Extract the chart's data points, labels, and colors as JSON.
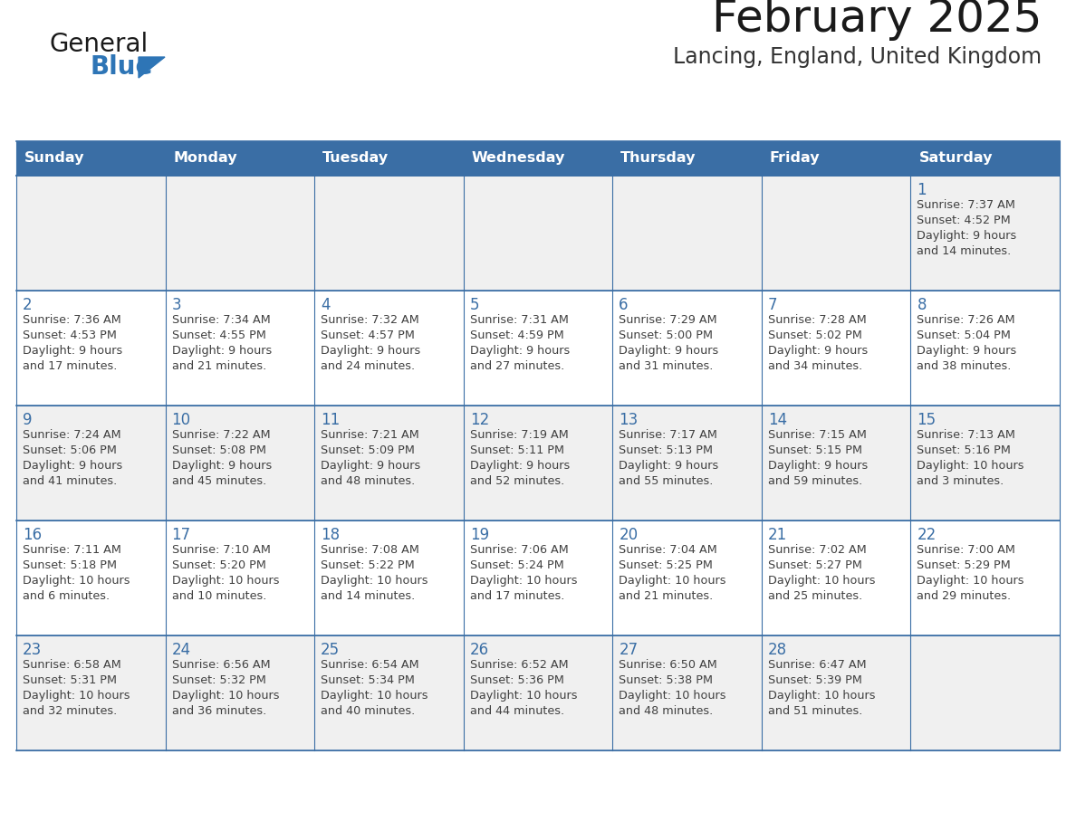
{
  "title": "February 2025",
  "subtitle": "Lancing, England, United Kingdom",
  "days_of_week": [
    "Sunday",
    "Monday",
    "Tuesday",
    "Wednesday",
    "Thursday",
    "Friday",
    "Saturday"
  ],
  "header_bg": "#3a6ea5",
  "header_text": "#ffffff",
  "cell_bg_row0": "#f0f0f0",
  "cell_bg_row1": "#ffffff",
  "cell_bg_row2": "#f0f0f0",
  "cell_bg_row3": "#ffffff",
  "cell_bg_row4": "#f0f0f0",
  "border_color": "#3a6ea5",
  "day_number_color": "#3a6ea5",
  "text_color": "#404040",
  "title_color": "#1a1a1a",
  "subtitle_color": "#333333",
  "logo_general_color": "#1a1a1a",
  "logo_blue_color": "#2e75b6",
  "calendar_data": [
    [
      null,
      null,
      null,
      null,
      null,
      null,
      {
        "day": 1,
        "sunrise": "7:37 AM",
        "sunset": "4:52 PM",
        "daylight_line1": "Daylight: 9 hours",
        "daylight_line2": "and 14 minutes."
      }
    ],
    [
      {
        "day": 2,
        "sunrise": "7:36 AM",
        "sunset": "4:53 PM",
        "daylight_line1": "Daylight: 9 hours",
        "daylight_line2": "and 17 minutes."
      },
      {
        "day": 3,
        "sunrise": "7:34 AM",
        "sunset": "4:55 PM",
        "daylight_line1": "Daylight: 9 hours",
        "daylight_line2": "and 21 minutes."
      },
      {
        "day": 4,
        "sunrise": "7:32 AM",
        "sunset": "4:57 PM",
        "daylight_line1": "Daylight: 9 hours",
        "daylight_line2": "and 24 minutes."
      },
      {
        "day": 5,
        "sunrise": "7:31 AM",
        "sunset": "4:59 PM",
        "daylight_line1": "Daylight: 9 hours",
        "daylight_line2": "and 27 minutes."
      },
      {
        "day": 6,
        "sunrise": "7:29 AM",
        "sunset": "5:00 PM",
        "daylight_line1": "Daylight: 9 hours",
        "daylight_line2": "and 31 minutes."
      },
      {
        "day": 7,
        "sunrise": "7:28 AM",
        "sunset": "5:02 PM",
        "daylight_line1": "Daylight: 9 hours",
        "daylight_line2": "and 34 minutes."
      },
      {
        "day": 8,
        "sunrise": "7:26 AM",
        "sunset": "5:04 PM",
        "daylight_line1": "Daylight: 9 hours",
        "daylight_line2": "and 38 minutes."
      }
    ],
    [
      {
        "day": 9,
        "sunrise": "7:24 AM",
        "sunset": "5:06 PM",
        "daylight_line1": "Daylight: 9 hours",
        "daylight_line2": "and 41 minutes."
      },
      {
        "day": 10,
        "sunrise": "7:22 AM",
        "sunset": "5:08 PM",
        "daylight_line1": "Daylight: 9 hours",
        "daylight_line2": "and 45 minutes."
      },
      {
        "day": 11,
        "sunrise": "7:21 AM",
        "sunset": "5:09 PM",
        "daylight_line1": "Daylight: 9 hours",
        "daylight_line2": "and 48 minutes."
      },
      {
        "day": 12,
        "sunrise": "7:19 AM",
        "sunset": "5:11 PM",
        "daylight_line1": "Daylight: 9 hours",
        "daylight_line2": "and 52 minutes."
      },
      {
        "day": 13,
        "sunrise": "7:17 AM",
        "sunset": "5:13 PM",
        "daylight_line1": "Daylight: 9 hours",
        "daylight_line2": "and 55 minutes."
      },
      {
        "day": 14,
        "sunrise": "7:15 AM",
        "sunset": "5:15 PM",
        "daylight_line1": "Daylight: 9 hours",
        "daylight_line2": "and 59 minutes."
      },
      {
        "day": 15,
        "sunrise": "7:13 AM",
        "sunset": "5:16 PM",
        "daylight_line1": "Daylight: 10 hours",
        "daylight_line2": "and 3 minutes."
      }
    ],
    [
      {
        "day": 16,
        "sunrise": "7:11 AM",
        "sunset": "5:18 PM",
        "daylight_line1": "Daylight: 10 hours",
        "daylight_line2": "and 6 minutes."
      },
      {
        "day": 17,
        "sunrise": "7:10 AM",
        "sunset": "5:20 PM",
        "daylight_line1": "Daylight: 10 hours",
        "daylight_line2": "and 10 minutes."
      },
      {
        "day": 18,
        "sunrise": "7:08 AM",
        "sunset": "5:22 PM",
        "daylight_line1": "Daylight: 10 hours",
        "daylight_line2": "and 14 minutes."
      },
      {
        "day": 19,
        "sunrise": "7:06 AM",
        "sunset": "5:24 PM",
        "daylight_line1": "Daylight: 10 hours",
        "daylight_line2": "and 17 minutes."
      },
      {
        "day": 20,
        "sunrise": "7:04 AM",
        "sunset": "5:25 PM",
        "daylight_line1": "Daylight: 10 hours",
        "daylight_line2": "and 21 minutes."
      },
      {
        "day": 21,
        "sunrise": "7:02 AM",
        "sunset": "5:27 PM",
        "daylight_line1": "Daylight: 10 hours",
        "daylight_line2": "and 25 minutes."
      },
      {
        "day": 22,
        "sunrise": "7:00 AM",
        "sunset": "5:29 PM",
        "daylight_line1": "Daylight: 10 hours",
        "daylight_line2": "and 29 minutes."
      }
    ],
    [
      {
        "day": 23,
        "sunrise": "6:58 AM",
        "sunset": "5:31 PM",
        "daylight_line1": "Daylight: 10 hours",
        "daylight_line2": "and 32 minutes."
      },
      {
        "day": 24,
        "sunrise": "6:56 AM",
        "sunset": "5:32 PM",
        "daylight_line1": "Daylight: 10 hours",
        "daylight_line2": "and 36 minutes."
      },
      {
        "day": 25,
        "sunrise": "6:54 AM",
        "sunset": "5:34 PM",
        "daylight_line1": "Daylight: 10 hours",
        "daylight_line2": "and 40 minutes."
      },
      {
        "day": 26,
        "sunrise": "6:52 AM",
        "sunset": "5:36 PM",
        "daylight_line1": "Daylight: 10 hours",
        "daylight_line2": "and 44 minutes."
      },
      {
        "day": 27,
        "sunrise": "6:50 AM",
        "sunset": "5:38 PM",
        "daylight_line1": "Daylight: 10 hours",
        "daylight_line2": "and 48 minutes."
      },
      {
        "day": 28,
        "sunrise": "6:47 AM",
        "sunset": "5:39 PM",
        "daylight_line1": "Daylight: 10 hours",
        "daylight_line2": "and 51 minutes."
      },
      null
    ]
  ],
  "figsize": [
    11.88,
    9.18
  ],
  "dpi": 100
}
